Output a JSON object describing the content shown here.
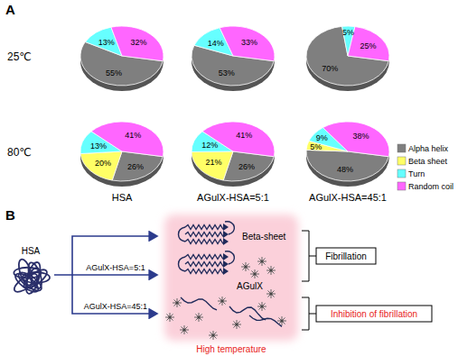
{
  "chart_data": [
    {
      "type": "pie",
      "categories": [
        "Alpha helix",
        "Turn",
        "Random coil"
      ],
      "values": [
        55,
        13,
        32
      ],
      "value_labels": [
        "55%",
        "13%",
        "32%"
      ],
      "colors": [
        "#7f7f7f",
        "#66ffff",
        "#ff66ff"
      ],
      "data_labels": true
    },
    {
      "type": "pie",
      "categories": [
        "Alpha helix",
        "Turn",
        "Random coil"
      ],
      "values": [
        53,
        14,
        33
      ],
      "value_labels": [
        "53%",
        "14%",
        "33%"
      ],
      "colors": [
        "#7f7f7f",
        "#66ffff",
        "#ff66ff"
      ],
      "data_labels": true
    },
    {
      "type": "pie",
      "categories": [
        "Alpha helix",
        "Turn",
        "Random coil"
      ],
      "values": [
        70,
        5,
        25
      ],
      "value_labels": [
        "70%",
        "5%",
        "25%"
      ],
      "colors": [
        "#7f7f7f",
        "#66ffff",
        "#ff66ff"
      ],
      "data_labels": true
    },
    {
      "type": "pie",
      "title": "HSA",
      "categories": [
        "Alpha helix",
        "Beta sheet",
        "Turn",
        "Random coil"
      ],
      "values": [
        26,
        20,
        13,
        41
      ],
      "value_labels": [
        "26%",
        "20%",
        "13%",
        "41%"
      ],
      "colors": [
        "#7f7f7f",
        "#ffff66",
        "#66ffff",
        "#ff66ff"
      ],
      "data_labels": true
    },
    {
      "type": "pie",
      "title": "AGulX-HSA=5:1",
      "categories": [
        "Alpha helix",
        "Beta sheet",
        "Turn",
        "Random coil"
      ],
      "values": [
        26,
        21,
        12,
        41
      ],
      "value_labels": [
        "26%",
        "21%",
        "12%",
        "41%"
      ],
      "colors": [
        "#7f7f7f",
        "#ffff66",
        "#66ffff",
        "#ff66ff"
      ],
      "data_labels": true
    },
    {
      "type": "pie",
      "title": "AGulX-HSA=45:1",
      "categories": [
        "Alpha helix",
        "Beta sheet",
        "Turn",
        "Random coil"
      ],
      "values": [
        48,
        5,
        9,
        38
      ],
      "value_labels": [
        "48%",
        "5%",
        "9%",
        "38%"
      ],
      "colors": [
        "#7f7f7f",
        "#ffff66",
        "#66ffff",
        "#ff66ff"
      ],
      "data_labels": true
    }
  ],
  "figure": {
    "panel_label": "A",
    "row_labels": [
      "25℃",
      "80℃"
    ],
    "legend": [
      {
        "name": "Alpha helix",
        "color": "#7f7f7f"
      },
      {
        "name": "Beta sheet",
        "color": "#ffff66"
      },
      {
        "name": "Turn",
        "color": "#66ffff"
      },
      {
        "name": "Random coil",
        "color": "#ff66ff"
      }
    ]
  },
  "diagram": {
    "panel_label": "B",
    "input": "HSA",
    "arrow_labels": [
      "AGulX-HSA=5:1",
      "AGulX-HSA=45:1"
    ],
    "box_labels": [
      "Beta-sheet",
      "AGulX"
    ],
    "outcomes": [
      "Fibrillation",
      "Inhibition of fibrillation"
    ],
    "condition": "High temperature"
  }
}
